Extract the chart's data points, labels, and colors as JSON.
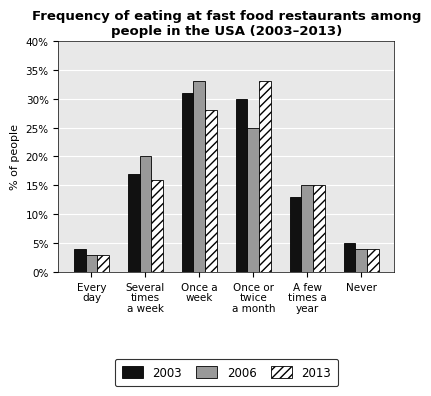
{
  "title": "Frequency of eating at fast food restaurants among\npeople in the USA (2003–2013)",
  "ylabel": "% of people",
  "categories": [
    "Every\nday",
    "Several\ntimes\na week",
    "Once a\nweek",
    "Once or\ntwice\na month",
    "A few\ntimes a\nyear",
    "Never"
  ],
  "series": {
    "2003": [
      4,
      17,
      31,
      30,
      13,
      5
    ],
    "2006": [
      3,
      20,
      33,
      25,
      15,
      4
    ],
    "2013": [
      3,
      16,
      28,
      33,
      15,
      4
    ]
  },
  "colors": {
    "2003": "#111111",
    "2006": "#999999",
    "2013": "#ffffff"
  },
  "hatch": {
    "2003": "",
    "2006": "",
    "2013": "////"
  },
  "ylim": [
    0,
    40
  ],
  "yticks": [
    0,
    5,
    10,
    15,
    20,
    25,
    30,
    35,
    40
  ],
  "ytick_labels": [
    "0%",
    "5%",
    "10%",
    "15%",
    "20%",
    "25%",
    "30%",
    "35%",
    "40%"
  ],
  "legend_labels": [
    "2003",
    "2006",
    "2013"
  ],
  "bar_width": 0.22,
  "title_fontsize": 9.5,
  "axis_fontsize": 8,
  "tick_fontsize": 7.5,
  "legend_fontsize": 8.5,
  "plot_bg_color": "#e8e8e8"
}
